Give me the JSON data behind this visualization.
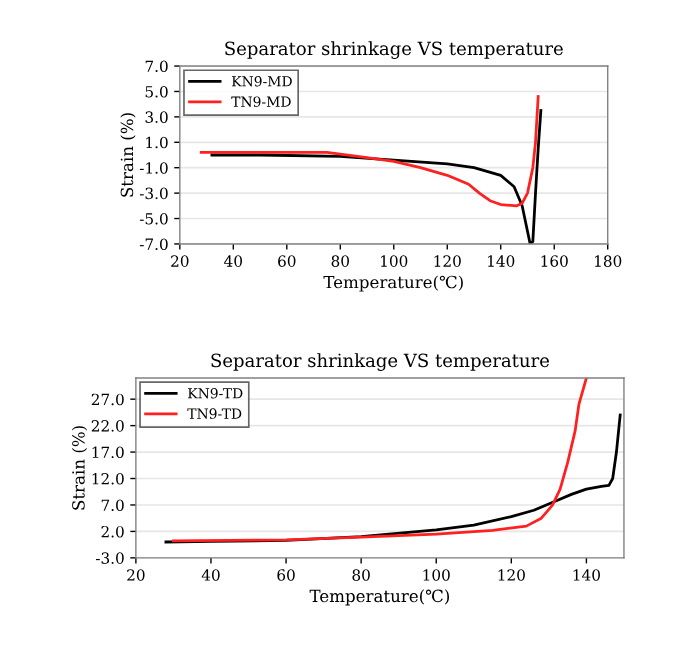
{
  "chart_data": [
    {
      "type": "line",
      "title": "Separator shrinkage VS temperature",
      "xlabel": "Temperature(℃)",
      "ylabel": "Strain (%)",
      "xlim": [
        20,
        180
      ],
      "xticks": [
        20,
        40,
        60,
        80,
        100,
        120,
        140,
        160,
        180
      ],
      "ylim": [
        -7.0,
        7.0
      ],
      "yticks": [
        {
          "value": -7,
          "label": "-7.0"
        },
        {
          "value": -5,
          "label": "-5.0"
        },
        {
          "value": -3,
          "label": "-3.0"
        },
        {
          "value": -1,
          "label": "-1.0"
        },
        {
          "value": 1,
          "label": "1.0"
        },
        {
          "value": 3,
          "label": "3.0"
        },
        {
          "value": 5,
          "label": "5.0"
        },
        {
          "value": 7,
          "label": "7.0"
        }
      ],
      "grid": "y",
      "legend": "top left",
      "series": [
        {
          "name": "KN9-MD",
          "color": "#000000",
          "x": [
            32,
            50,
            80,
            100,
            120,
            130,
            140,
            145,
            148,
            150,
            151,
            152,
            153,
            154,
            155
          ],
          "values": [
            0.0,
            0.0,
            -0.1,
            -0.4,
            -0.7,
            -1.0,
            -1.6,
            -2.5,
            -4.0,
            -6.0,
            -7.0,
            -6.8,
            -3.0,
            0.5,
            3.5
          ]
        },
        {
          "name": "TN9-MD",
          "color": "#ff2020",
          "x": [
            28,
            50,
            75,
            90,
            100,
            110,
            120,
            128,
            132,
            136,
            140,
            146,
            148,
            150,
            152,
            153,
            154
          ],
          "values": [
            0.2,
            0.2,
            0.2,
            -0.2,
            -0.5,
            -1.0,
            -1.6,
            -2.3,
            -3.0,
            -3.6,
            -3.9,
            -4.0,
            -3.8,
            -3.0,
            -1.0,
            1.0,
            4.6
          ]
        }
      ]
    },
    {
      "type": "line",
      "title": "Separator shrinkage VS temperature",
      "xlabel": "Temperature(℃)",
      "ylabel": "Strain (%)",
      "xlim": [
        20,
        150
      ],
      "xticks": [
        20,
        40,
        60,
        80,
        100,
        120,
        140
      ],
      "ylim": [
        -3.0,
        31.0
      ],
      "yticks": [
        {
          "value": -3,
          "label": "-3.0"
        },
        {
          "value": 2,
          "label": "2.0"
        },
        {
          "value": 7,
          "label": "7.0"
        },
        {
          "value": 12,
          "label": "12.0"
        },
        {
          "value": 17,
          "label": "17.0"
        },
        {
          "value": 22,
          "label": "22.0"
        },
        {
          "value": 27,
          "label": "27.0"
        }
      ],
      "grid": "y",
      "legend": "top left",
      "series": [
        {
          "name": "KN9-TD",
          "color": "#000000",
          "x": [
            28,
            40,
            60,
            80,
            100,
            110,
            120,
            126,
            132,
            136,
            140,
            144,
            146,
            147,
            148,
            149
          ],
          "values": [
            0.0,
            0.1,
            0.3,
            1.0,
            2.3,
            3.2,
            4.8,
            6.0,
            7.8,
            9.0,
            10.0,
            10.5,
            10.7,
            12.0,
            17.0,
            24.0
          ]
        },
        {
          "name": "TN9-TD",
          "color": "#ff2020",
          "x": [
            30,
            60,
            80,
            100,
            115,
            124,
            128,
            131,
            133,
            135,
            137,
            138,
            140
          ],
          "values": [
            0.2,
            0.4,
            0.9,
            1.5,
            2.2,
            3.0,
            4.5,
            7.0,
            10.0,
            15.0,
            21.0,
            26.0,
            31.0
          ]
        }
      ]
    }
  ]
}
